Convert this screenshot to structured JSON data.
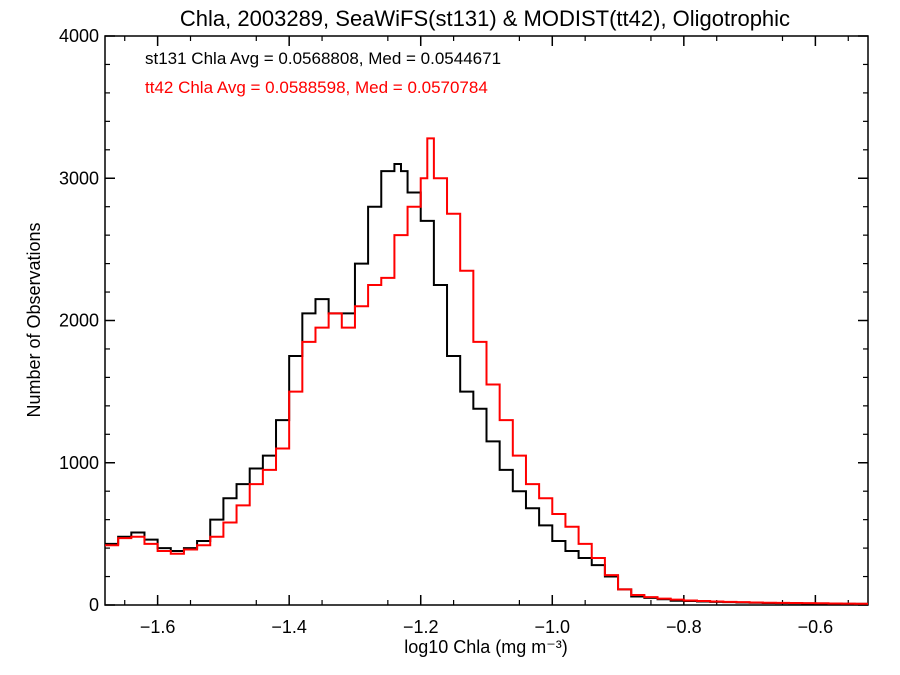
{
  "chart_data": {
    "type": "line",
    "title": "Chla, 2003289, SeaWiFS(st131) & MODIST(tt42), Oligotrophic",
    "xlabel": "log10 Chla (mg m⁻³)",
    "ylabel": "Number of Observations",
    "xlim": [
      -1.68,
      -0.52
    ],
    "ylim": [
      0,
      4000
    ],
    "xticks": [
      -1.6,
      -1.4,
      -1.2,
      -1.0,
      -0.8,
      -0.6
    ],
    "xtick_labels": [
      "−1.6",
      "−1.4",
      "−1.2",
      "−1.0",
      "−0.8",
      "−0.6"
    ],
    "yticks": [
      0,
      1000,
      2000,
      3000,
      4000
    ],
    "ytick_labels": [
      "0",
      "1000",
      "2000",
      "3000",
      "4000"
    ],
    "grid": false,
    "annotations": [
      {
        "text": "st131 Chla Avg = 0.0568808, Med = 0.0544671",
        "color": "#000000"
      },
      {
        "text": "tt42 Chla Avg = 0.0588598, Med = 0.0570784",
        "color": "#ff0000"
      }
    ],
    "series": [
      {
        "color": "#000000",
        "step": true,
        "x": [
          -1.68,
          -1.66,
          -1.64,
          -1.62,
          -1.6,
          -1.58,
          -1.56,
          -1.54,
          -1.52,
          -1.5,
          -1.48,
          -1.46,
          -1.44,
          -1.42,
          -1.4,
          -1.38,
          -1.36,
          -1.34,
          -1.32,
          -1.3,
          -1.28,
          -1.26,
          -1.24,
          -1.23,
          -1.22,
          -1.2,
          -1.18,
          -1.16,
          -1.14,
          -1.12,
          -1.1,
          -1.08,
          -1.06,
          -1.04,
          -1.02,
          -1.0,
          -0.98,
          -0.96,
          -0.94,
          -0.92,
          -0.9,
          -0.88,
          -0.86,
          -0.84,
          -0.82,
          -0.8,
          -0.78,
          -0.76,
          -0.74,
          -0.72,
          -0.7,
          -0.68,
          -0.66,
          -0.64,
          -0.62,
          -0.6,
          -0.58,
          -0.56,
          -0.54,
          -0.52
        ],
        "y": [
          430,
          480,
          510,
          460,
          400,
          380,
          400,
          450,
          600,
          750,
          850,
          960,
          1050,
          1300,
          1750,
          2050,
          2150,
          2050,
          2050,
          2400,
          2800,
          3050,
          3100,
          3050,
          2900,
          2700,
          2250,
          1750,
          1500,
          1380,
          1150,
          950,
          800,
          680,
          560,
          450,
          380,
          330,
          280,
          200,
          110,
          60,
          50,
          40,
          30,
          28,
          25,
          22,
          20,
          18,
          16,
          14,
          13,
          12,
          11,
          10,
          9,
          8,
          8,
          8
        ]
      },
      {
        "color": "#ff0000",
        "step": true,
        "x": [
          -1.68,
          -1.66,
          -1.64,
          -1.62,
          -1.6,
          -1.58,
          -1.56,
          -1.54,
          -1.52,
          -1.5,
          -1.48,
          -1.46,
          -1.44,
          -1.42,
          -1.4,
          -1.38,
          -1.36,
          -1.34,
          -1.32,
          -1.3,
          -1.28,
          -1.26,
          -1.24,
          -1.22,
          -1.2,
          -1.19,
          -1.18,
          -1.16,
          -1.14,
          -1.12,
          -1.1,
          -1.08,
          -1.06,
          -1.04,
          -1.02,
          -1.0,
          -0.98,
          -0.96,
          -0.94,
          -0.92,
          -0.9,
          -0.88,
          -0.86,
          -0.84,
          -0.82,
          -0.8,
          -0.78,
          -0.76,
          -0.74,
          -0.72,
          -0.7,
          -0.68,
          -0.66,
          -0.64,
          -0.62,
          -0.6,
          -0.58,
          -0.56,
          -0.54,
          -0.52
        ],
        "y": [
          420,
          470,
          480,
          430,
          380,
          360,
          390,
          420,
          480,
          580,
          700,
          850,
          950,
          1100,
          1500,
          1850,
          1950,
          2050,
          1950,
          2100,
          2250,
          2300,
          2600,
          2800,
          3000,
          3280,
          3000,
          2750,
          2350,
          1850,
          1550,
          1300,
          1050,
          850,
          750,
          640,
          550,
          430,
          330,
          210,
          110,
          70,
          55,
          45,
          38,
          32,
          28,
          25,
          22,
          20,
          18,
          16,
          15,
          14,
          13,
          12,
          11,
          10,
          9,
          9
        ]
      }
    ]
  }
}
